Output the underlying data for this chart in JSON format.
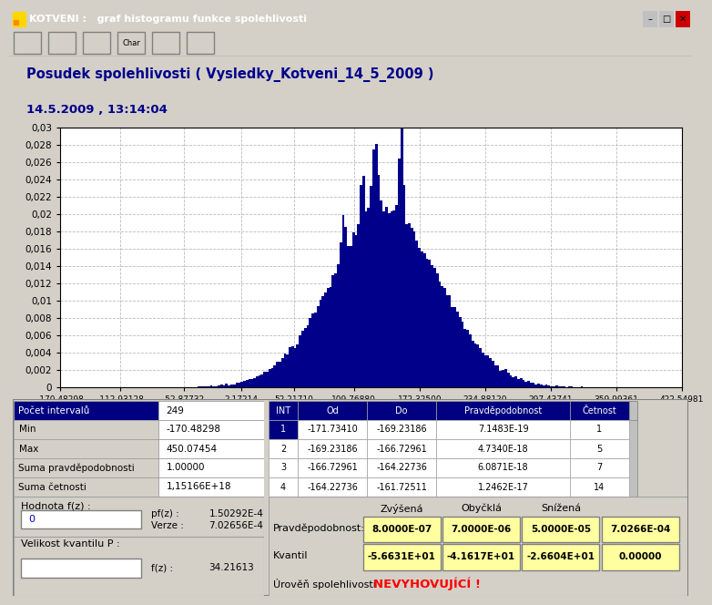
{
  "title_line1": "Posudek spolehlivosti ( Vysledky_Kotveni_14_5_2009 )",
  "title_line2": "14.5.2009 , 13:14:04",
  "window_title": "KOTVENI :   graf histogramu funkce spolehlivosti",
  "hist_color": "#00008B",
  "bg_color": "#D4D0C8",
  "plot_bg": "#FFFFFF",
  "xlim_min": -170.48298,
  "xlim_max": 422.54981,
  "ylim_min": 0,
  "ylim_max": 0.03,
  "xtick_labels": [
    "-170.48298",
    "-112.93128",
    "-52.87732",
    "2.17214",
    "52.21710",
    "109.76880",
    "172.32500",
    "234.88120",
    "297.43741",
    "359.99361",
    "422.54981"
  ],
  "xtick_values": [
    -170.48298,
    -112.93128,
    -52.87732,
    2.17214,
    52.2171,
    109.7688,
    172.325,
    234.8812,
    297.43741,
    359.99361,
    422.54981
  ],
  "ytick_labels": [
    "0",
    "0,002",
    "0,004",
    "0,006",
    "0,008",
    "0,01",
    "0,012",
    "0,014",
    "0,016",
    "0,018",
    "0,02",
    "0,022",
    "0,024",
    "0,026",
    "0,028",
    "0,03"
  ],
  "ytick_values": [
    0,
    0.002,
    0.004,
    0.006,
    0.008,
    0.01,
    0.012,
    0.014,
    0.016,
    0.018,
    0.02,
    0.022,
    0.024,
    0.026,
    0.028,
    0.03
  ],
  "stats_label1": "Počet intervalů",
  "stats_val1": "249",
  "stats_label2": "Min",
  "stats_val2": "-170.48298",
  "stats_label3": "Max",
  "stats_val3": "450.07454",
  "stats_label4": "Suma pravděpodobnosti",
  "stats_val4": "1.00000",
  "stats_label5": "Suma četnosti",
  "stats_val5": "1,15166E+18",
  "table_headers": [
    "INT",
    "Od",
    "Do",
    "Pravděpodobnost",
    "Četnost"
  ],
  "table_rows": [
    [
      "1",
      "-171.73410",
      "-169.23186",
      "7.1483E-19",
      "1"
    ],
    [
      "2",
      "-169.23186",
      "-166.72961",
      "4.7340E-18",
      "5"
    ],
    [
      "3",
      "-166.72961",
      "-164.22736",
      "6.0871E-18",
      "7"
    ],
    [
      "4",
      "-164.22736",
      "-161.72511",
      "1.2462E-17",
      "14"
    ]
  ],
  "hodnotafz_label": "Hodnota f(z) :",
  "hodnotafz_val": "0",
  "pfz_label": "pf(z) :",
  "pfz_val": "1.50292E-4",
  "verze_label": "Verze :",
  "verze_val": "7.02656E-4",
  "kvantil_label": "Velikost kvantilu P :",
  "fz_label": "f(z) :",
  "fz_val": "34.21613",
  "prob_label": "Pravděpodobnost:",
  "kvantil_row_label": "Kvantil",
  "uroven_label": "Úrověň spolehlivosti :",
  "uroven_val": "NEVYHOVUJÍCÍ !",
  "col_headers": [
    "Zvýšená",
    "Obyčklá",
    "Snížená",
    ""
  ],
  "prob_vals": [
    "8.0000E-07",
    "7.0000E-06",
    "5.0000E-05",
    "7.0266E-04"
  ],
  "kvantil_vals": [
    "-5.6631E+01",
    "-4.1617E+01",
    "-2.6604E+01",
    "0.00000"
  ],
  "header_bg": "#000080",
  "header_fg": "#FFFFFF",
  "row1_bg": "#000080",
  "row1_fg": "#FFFFFF",
  "cell_bg": "#FFFFFF",
  "cell_fg": "#000000",
  "highlight_bg": "#FFFFA0",
  "uroven_color": "#FF0000",
  "title_color": "#00008B",
  "window_bg": "#D4D0C8",
  "titlebar_bg": "#0A3CC7",
  "titlebar_fg": "#FFFFFF",
  "toolbar_bg": "#D4D0C8",
  "inner_bg": "#F0EFE8",
  "border_light": "#FFFFFF",
  "border_dark": "#808080"
}
